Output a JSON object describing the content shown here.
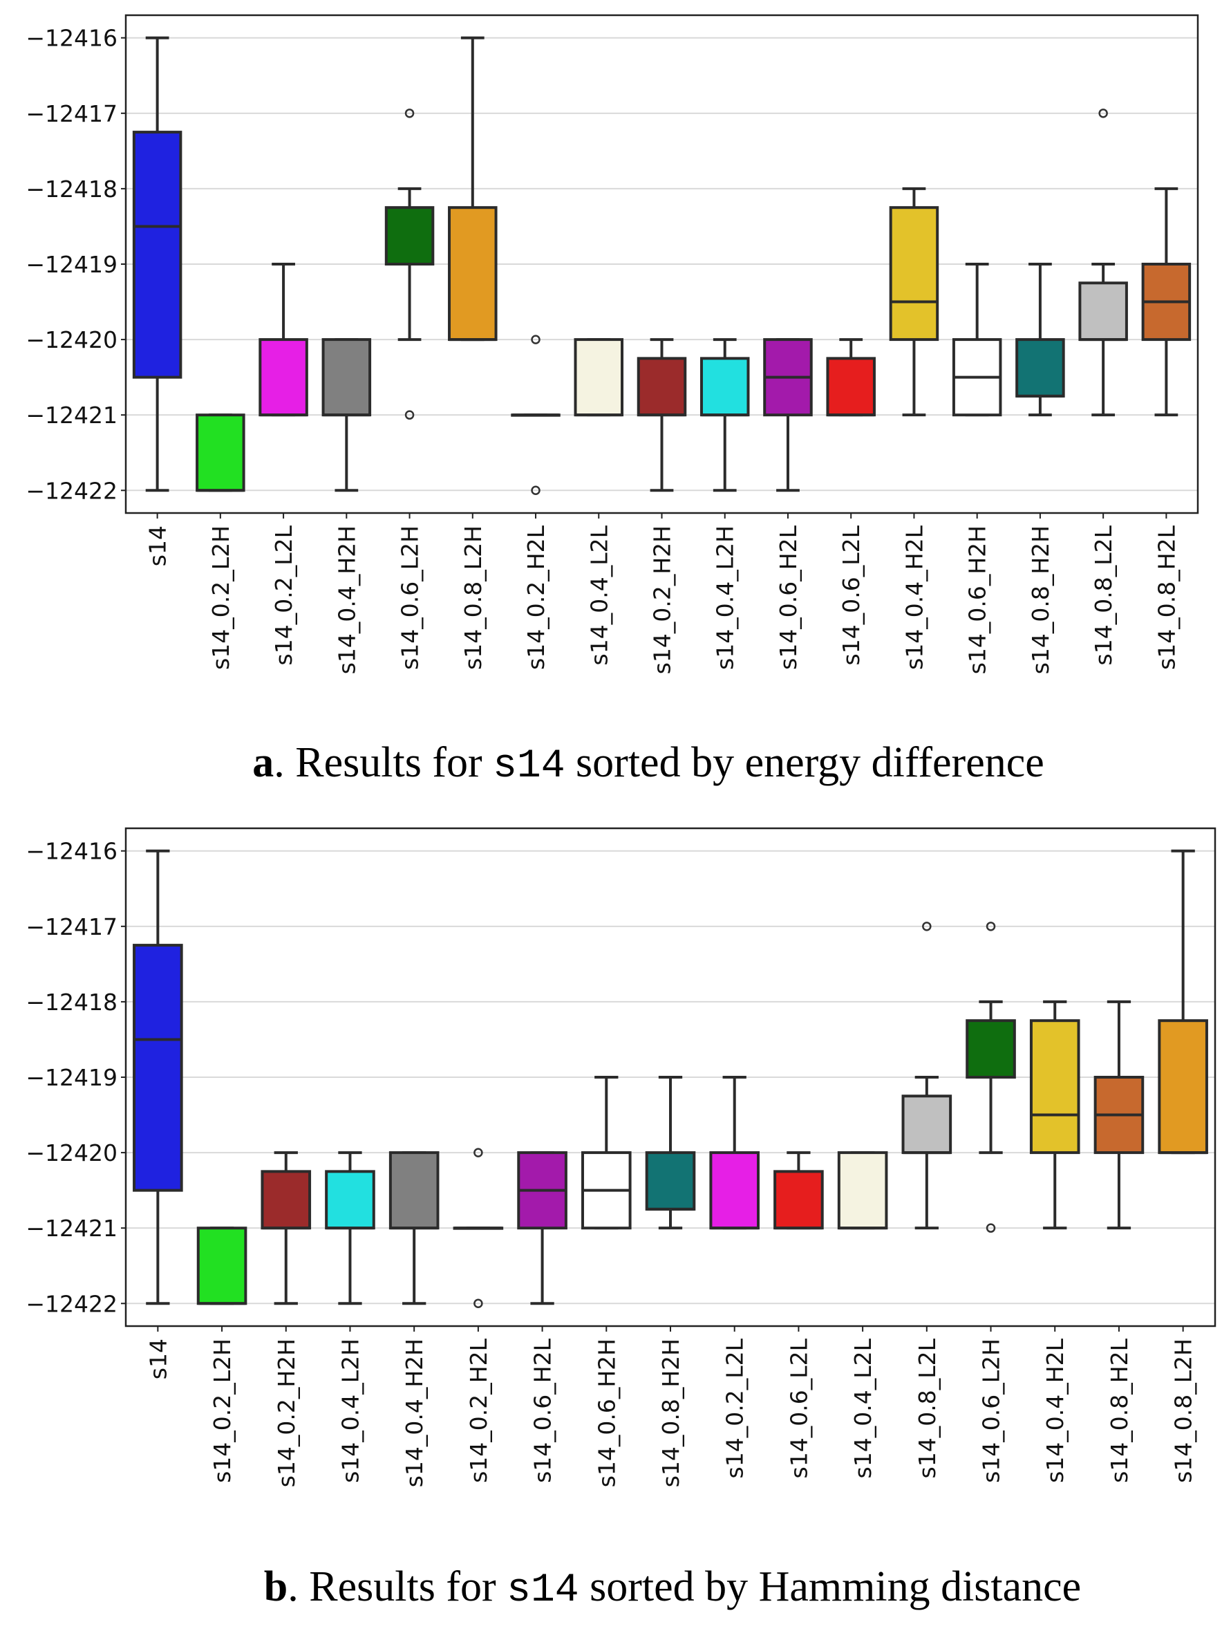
{
  "figure": {
    "panel_a": {
      "caption_label": "a",
      "caption_prefix": ". Results for ",
      "caption_code": "s14",
      "caption_suffix": " sorted by energy difference"
    },
    "panel_b": {
      "caption_label": "b",
      "caption_prefix": ". Results for ",
      "caption_code": "s14",
      "caption_suffix": " sorted by Hamming distance"
    }
  },
  "chart_data": [
    {
      "type": "box",
      "title": "Results for s14 sorted by energy difference",
      "xlabel": "",
      "ylabel": "",
      "ylim": [
        -12422.3,
        -12415.7
      ],
      "yticks": [
        -12416,
        -12417,
        -12418,
        -12419,
        -12420,
        -12421,
        -12422
      ],
      "ytick_labels": [
        "−12416",
        "−12417",
        "−12418",
        "−12419",
        "−12420",
        "−12421",
        "−12422"
      ],
      "grid": "horizontal",
      "boxes": [
        {
          "label": "s14",
          "color": "#1f22e0",
          "whislo": -12422,
          "q1": -12420.5,
          "med": -12418.5,
          "q3": -12417.25,
          "whishi": -12416,
          "fliers": []
        },
        {
          "label": "s14_0.2_L2H",
          "color": "#22e022",
          "whislo": -12422,
          "q1": -12422,
          "med": -12422,
          "q3": -12421,
          "whishi": -12421,
          "fliers": []
        },
        {
          "label": "s14_0.2_L2L",
          "color": "#e61fe6",
          "whislo": -12421,
          "q1": -12421,
          "med": -12421,
          "q3": -12420,
          "whishi": -12419,
          "fliers": []
        },
        {
          "label": "s14_0.4_H2H",
          "color": "#808080",
          "whislo": -12422,
          "q1": -12421,
          "med": -12421,
          "q3": -12420,
          "whishi": -12420,
          "fliers": []
        },
        {
          "label": "s14_0.6_L2H",
          "color": "#0f6e0f",
          "whislo": -12420,
          "q1": -12419,
          "med": -12419,
          "q3": -12418.25,
          "whishi": -12418,
          "fliers": [
            -12417,
            -12421
          ]
        },
        {
          "label": "s14_0.8_L2H",
          "color": "#e19a22",
          "whislo": -12420,
          "q1": -12420,
          "med": -12420,
          "q3": -12418.25,
          "whishi": -12416,
          "fliers": []
        },
        {
          "label": "s14_0.2_H2L",
          "color": "#ffffff",
          "whislo": -12421,
          "q1": -12421,
          "med": -12421,
          "q3": -12421,
          "whishi": -12421,
          "fliers": [
            -12420,
            -12422
          ]
        },
        {
          "label": "s14_0.4_L2L",
          "color": "#f5f3e1",
          "whislo": -12421,
          "q1": -12421,
          "med": -12421,
          "q3": -12420,
          "whishi": -12420,
          "fliers": []
        },
        {
          "label": "s14_0.2_H2H",
          "color": "#9b2b2b",
          "whislo": -12422,
          "q1": -12421,
          "med": -12421,
          "q3": -12420.25,
          "whishi": -12420,
          "fliers": []
        },
        {
          "label": "s14_0.4_L2H",
          "color": "#22e0e0",
          "whislo": -12422,
          "q1": -12421,
          "med": -12421,
          "q3": -12420.25,
          "whishi": -12420,
          "fliers": []
        },
        {
          "label": "s14_0.6_H2L",
          "color": "#a31aab",
          "whislo": -12422,
          "q1": -12421,
          "med": -12420.5,
          "q3": -12420,
          "whishi": -12420,
          "fliers": []
        },
        {
          "label": "s14_0.6_L2L",
          "color": "#e61e1e",
          "whislo": -12421,
          "q1": -12421,
          "med": -12421,
          "q3": -12420.25,
          "whishi": -12420,
          "fliers": []
        },
        {
          "label": "s14_0.4_H2L",
          "color": "#e3c22a",
          "whislo": -12421,
          "q1": -12420,
          "med": -12419.5,
          "q3": -12418.25,
          "whishi": -12418,
          "fliers": []
        },
        {
          "label": "s14_0.6_H2H",
          "color": "#ffffff",
          "whislo": -12421,
          "q1": -12421,
          "med": -12420.5,
          "q3": -12420,
          "whishi": -12419,
          "fliers": []
        },
        {
          "label": "s14_0.8_H2H",
          "color": "#127373",
          "whislo": -12421,
          "q1": -12420.75,
          "med": -12420.75,
          "q3": -12420,
          "whishi": -12419,
          "fliers": []
        },
        {
          "label": "s14_0.8_L2L",
          "color": "#c0c0c0",
          "whislo": -12421,
          "q1": -12420,
          "med": -12420,
          "q3": -12419.25,
          "whishi": -12419,
          "fliers": [
            -12417
          ]
        },
        {
          "label": "s14_0.8_H2L",
          "color": "#c7692e",
          "whislo": -12421,
          "q1": -12420,
          "med": -12419.5,
          "q3": -12419,
          "whishi": -12418,
          "fliers": []
        }
      ]
    },
    {
      "type": "box",
      "title": "Results for s14 sorted by Hamming distance",
      "xlabel": "",
      "ylabel": "",
      "ylim": [
        -12422.3,
        -12415.7
      ],
      "yticks": [
        -12416,
        -12417,
        -12418,
        -12419,
        -12420,
        -12421,
        -12422
      ],
      "ytick_labels": [
        "−12416",
        "−12417",
        "−12418",
        "−12419",
        "−12420",
        "−12421",
        "−12422"
      ],
      "grid": "horizontal",
      "boxes": [
        {
          "label": "s14",
          "color": "#1f22e0",
          "whislo": -12422,
          "q1": -12420.5,
          "med": -12418.5,
          "q3": -12417.25,
          "whishi": -12416,
          "fliers": []
        },
        {
          "label": "s14_0.2_L2H",
          "color": "#22e022",
          "whislo": -12422,
          "q1": -12422,
          "med": -12422,
          "q3": -12421,
          "whishi": -12421,
          "fliers": []
        },
        {
          "label": "s14_0.2_H2H",
          "color": "#9b2b2b",
          "whislo": -12422,
          "q1": -12421,
          "med": -12421,
          "q3": -12420.25,
          "whishi": -12420,
          "fliers": []
        },
        {
          "label": "s14_0.4_L2H",
          "color": "#22e0e0",
          "whislo": -12422,
          "q1": -12421,
          "med": -12421,
          "q3": -12420.25,
          "whishi": -12420,
          "fliers": []
        },
        {
          "label": "s14_0.4_H2H",
          "color": "#808080",
          "whislo": -12422,
          "q1": -12421,
          "med": -12421,
          "q3": -12420,
          "whishi": -12420,
          "fliers": []
        },
        {
          "label": "s14_0.2_H2L",
          "color": "#ffffff",
          "whislo": -12421,
          "q1": -12421,
          "med": -12421,
          "q3": -12421,
          "whishi": -12421,
          "fliers": [
            -12420,
            -12422
          ]
        },
        {
          "label": "s14_0.6_H2L",
          "color": "#a31aab",
          "whislo": -12422,
          "q1": -12421,
          "med": -12420.5,
          "q3": -12420,
          "whishi": -12420,
          "fliers": []
        },
        {
          "label": "s14_0.6_H2H",
          "color": "#ffffff",
          "whislo": -12421,
          "q1": -12421,
          "med": -12420.5,
          "q3": -12420,
          "whishi": -12419,
          "fliers": []
        },
        {
          "label": "s14_0.8_H2H",
          "color": "#127373",
          "whislo": -12421,
          "q1": -12420.75,
          "med": -12420.75,
          "q3": -12420,
          "whishi": -12419,
          "fliers": []
        },
        {
          "label": "s14_0.2_L2L",
          "color": "#e61fe6",
          "whislo": -12421,
          "q1": -12421,
          "med": -12421,
          "q3": -12420,
          "whishi": -12419,
          "fliers": []
        },
        {
          "label": "s14_0.6_L2L",
          "color": "#e61e1e",
          "whislo": -12421,
          "q1": -12421,
          "med": -12421,
          "q3": -12420.25,
          "whishi": -12420,
          "fliers": []
        },
        {
          "label": "s14_0.4_L2L",
          "color": "#f5f3e1",
          "whislo": -12421,
          "q1": -12421,
          "med": -12421,
          "q3": -12420,
          "whishi": -12420,
          "fliers": []
        },
        {
          "label": "s14_0.8_L2L",
          "color": "#c0c0c0",
          "whislo": -12421,
          "q1": -12420,
          "med": -12420,
          "q3": -12419.25,
          "whishi": -12419,
          "fliers": [
            -12417
          ]
        },
        {
          "label": "s14_0.6_L2H",
          "color": "#0f6e0f",
          "whislo": -12420,
          "q1": -12419,
          "med": -12419,
          "q3": -12418.25,
          "whishi": -12418,
          "fliers": [
            -12417,
            -12421
          ]
        },
        {
          "label": "s14_0.4_H2L",
          "color": "#e3c22a",
          "whislo": -12421,
          "q1": -12420,
          "med": -12419.5,
          "q3": -12418.25,
          "whishi": -12418,
          "fliers": []
        },
        {
          "label": "s14_0.8_H2L",
          "color": "#c7692e",
          "whislo": -12421,
          "q1": -12420,
          "med": -12419.5,
          "q3": -12419,
          "whishi": -12418,
          "fliers": []
        },
        {
          "label": "s14_0.8_L2H",
          "color": "#e19a22",
          "whislo": -12420,
          "q1": -12420,
          "med": -12420,
          "q3": -12418.25,
          "whishi": -12416,
          "fliers": []
        }
      ]
    }
  ]
}
